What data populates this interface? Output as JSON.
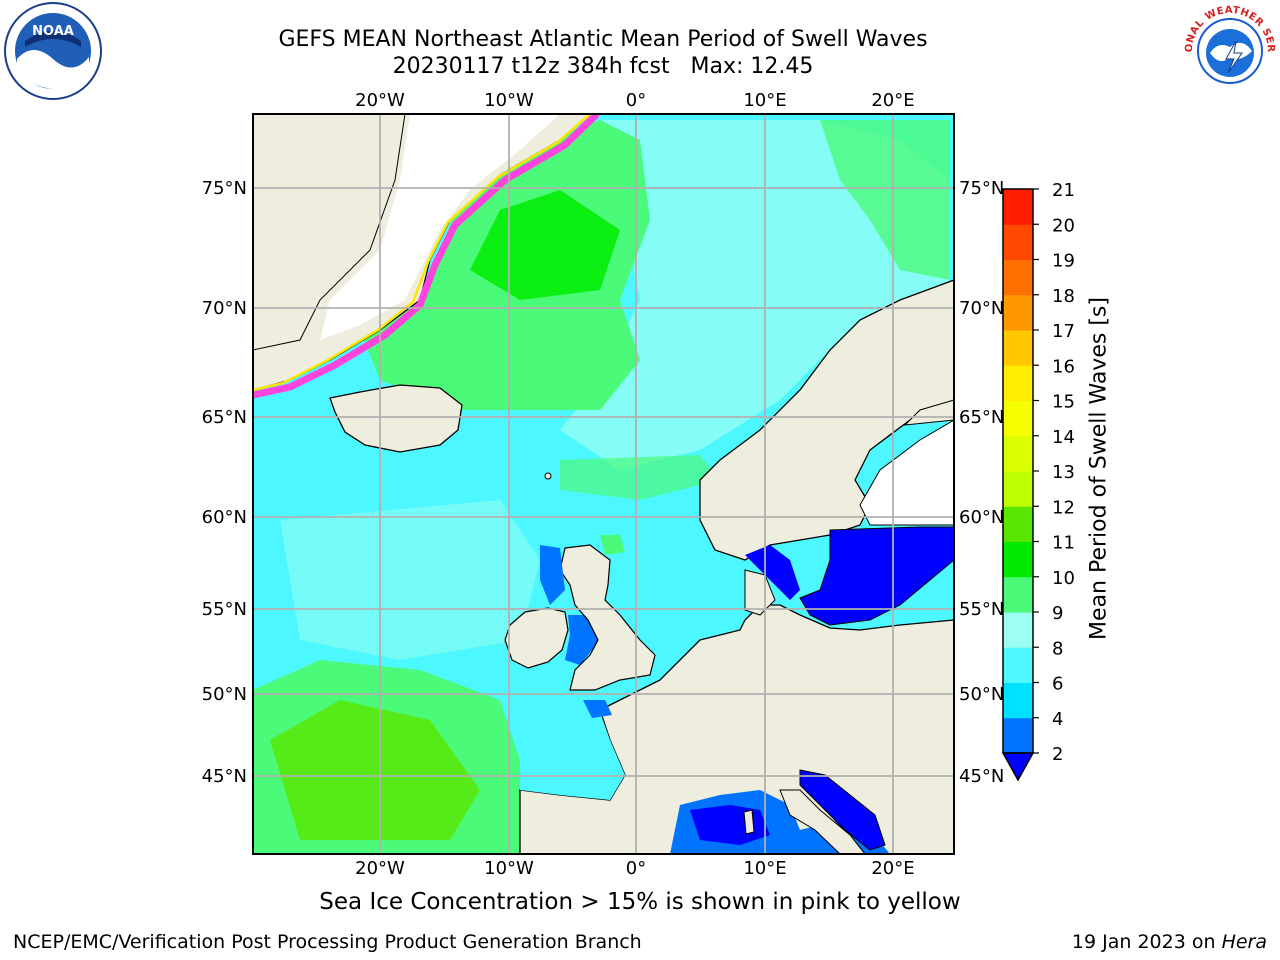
{
  "header": {
    "title_line1": "GEFS MEAN Northeast Atlantic Mean Period of Swell Waves",
    "title_line2": "20230117 t12z 384h fcst   Max: 12.45"
  },
  "logos": {
    "left": "NOAA",
    "right": "NATIONAL WEATHER SERVICE"
  },
  "map": {
    "lon_labels": [
      "20°W",
      "10°W",
      "0°",
      "10°E",
      "20°E"
    ],
    "lat_labels": [
      "75°N",
      "70°N",
      "65°N",
      "60°N",
      "55°N",
      "50°N",
      "45°N"
    ],
    "colors": {
      "land": "#efedde",
      "ice_free_white": "#ffffff",
      "grid": "#b0b0b0"
    }
  },
  "colorbar": {
    "label": "Mean Period of Swell Waves [s]",
    "ticks": [
      "2",
      "4",
      "6",
      "8",
      "9",
      "10",
      "11",
      "12",
      "13",
      "14",
      "15",
      "16",
      "17",
      "18",
      "19",
      "20",
      "21"
    ],
    "colors": [
      "#0073ff",
      "#00e1ff",
      "#4df7ff",
      "#9dfff2",
      "#4cfa7a",
      "#00eb00",
      "#58e600",
      "#c0ff00",
      "#dcff00",
      "#f5ff00",
      "#ffee00",
      "#ffc800",
      "#ff9800",
      "#ff7000",
      "#ff4800",
      "#ff1e00"
    ],
    "underflow_color": "#0000ff"
  },
  "note": "Sea Ice Concentration > 15% is shown in pink to yellow",
  "footer": {
    "left": "NCEP/EMC/Verification Post Processing Product Generation Branch",
    "right_prefix": "19 Jan 2023 on ",
    "right_machine": "Hera"
  }
}
